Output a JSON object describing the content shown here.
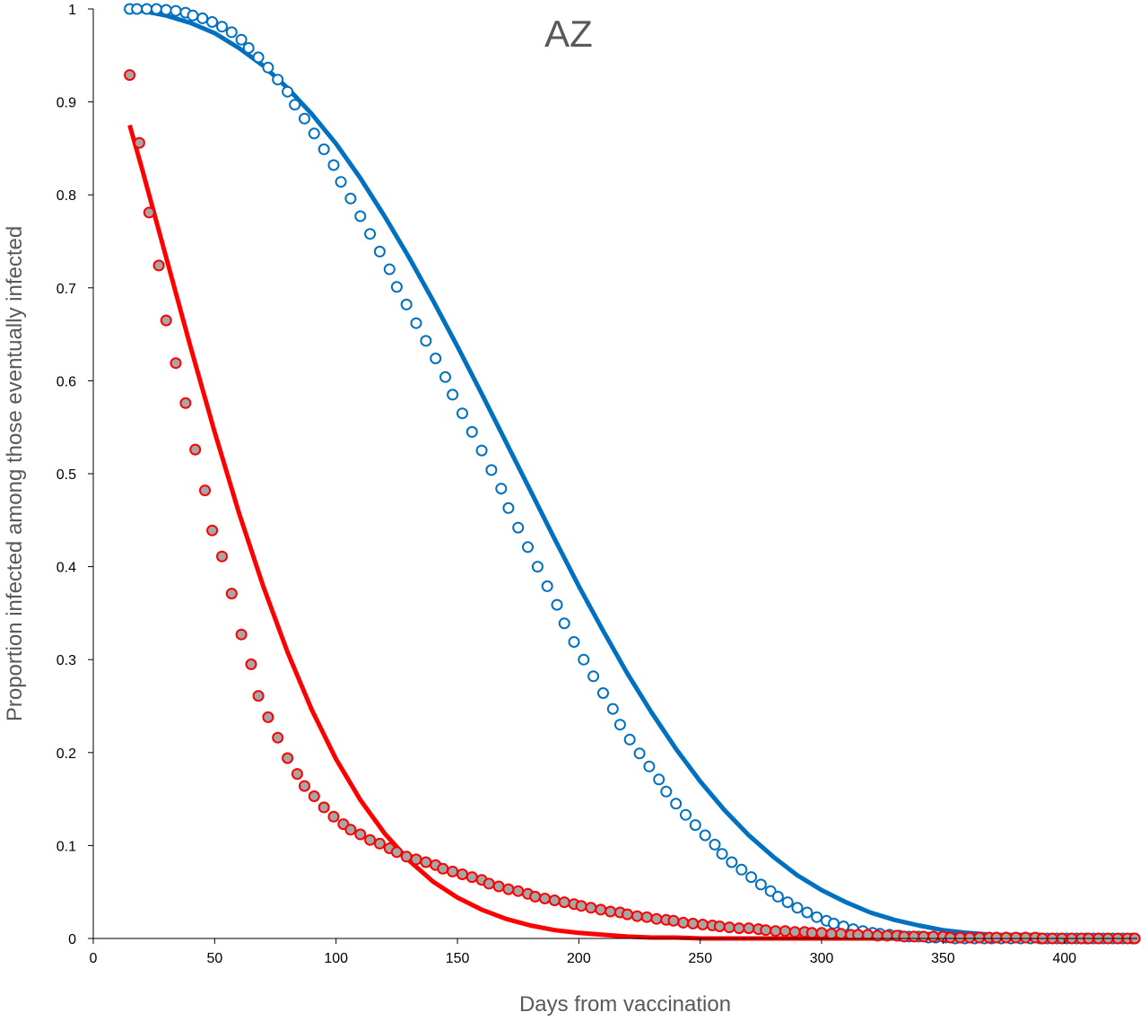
{
  "chart_data": {
    "type": "scatter",
    "title": "AZ",
    "xlabel": "Days from vaccination",
    "ylabel": "Proportion infected among those eventually infected",
    "xlim": [
      0,
      430
    ],
    "ylim": [
      0,
      1
    ],
    "x_ticks": [
      "0",
      "50",
      "100",
      "150",
      "200",
      "250",
      "300",
      "350",
      "400"
    ],
    "y_ticks": [
      "0",
      "0.1",
      "0.2",
      "0.3",
      "0.4",
      "0.5",
      "0.6",
      "0.7",
      "0.8",
      "0.9",
      "1"
    ],
    "grid": false,
    "legend": "none",
    "colors": {
      "blue": "#0070C0",
      "red": "#FF0000",
      "red_fill": "#A6A6A6",
      "axis": "#000000",
      "text": "#595959"
    },
    "series": [
      {
        "kind": "points-open",
        "color": "#0070C0",
        "x": [
          15,
          18,
          22,
          26,
          30,
          34,
          38,
          41,
          45,
          49,
          53,
          57,
          61,
          64,
          68,
          72,
          76,
          80,
          83,
          87,
          91,
          95,
          99,
          102,
          106,
          110,
          114,
          118,
          122,
          125,
          129,
          133,
          137,
          141,
          145,
          148,
          152,
          156,
          160,
          164,
          168,
          171,
          175,
          179,
          183,
          187,
          191,
          194,
          198,
          202,
          206,
          210,
          214,
          217,
          221,
          225,
          229,
          233,
          236,
          240,
          244,
          248,
          252,
          256,
          259,
          263,
          267,
          271,
          275,
          279,
          282,
          286,
          290,
          294,
          298,
          302,
          305,
          309,
          313,
          317,
          321,
          324,
          328,
          332,
          336,
          340,
          344,
          347,
          351,
          355,
          359,
          363,
          367,
          370,
          374,
          378,
          382,
          386,
          390,
          393,
          397,
          401,
          405,
          409,
          412,
          416,
          420,
          424,
          428
        ],
        "y": [
          1.0,
          1.0,
          1.0,
          1.0,
          0.999,
          0.998,
          0.996,
          0.993,
          0.99,
          0.986,
          0.981,
          0.975,
          0.967,
          0.958,
          0.948,
          0.937,
          0.924,
          0.911,
          0.897,
          0.882,
          0.866,
          0.849,
          0.832,
          0.814,
          0.796,
          0.777,
          0.758,
          0.739,
          0.72,
          0.701,
          0.682,
          0.662,
          0.643,
          0.624,
          0.604,
          0.585,
          0.565,
          0.545,
          0.525,
          0.504,
          0.484,
          0.463,
          0.442,
          0.421,
          0.4,
          0.379,
          0.359,
          0.339,
          0.319,
          0.3,
          0.282,
          0.264,
          0.247,
          0.23,
          0.214,
          0.199,
          0.185,
          0.171,
          0.158,
          0.145,
          0.133,
          0.122,
          0.111,
          0.101,
          0.091,
          0.082,
          0.074,
          0.066,
          0.058,
          0.051,
          0.045,
          0.039,
          0.033,
          0.028,
          0.023,
          0.019,
          0.016,
          0.013,
          0.01,
          0.008,
          0.006,
          0.005,
          0.004,
          0.003,
          0.002,
          0.002,
          0.001,
          0.001,
          0.001,
          0.0,
          0.0,
          0.0,
          0.0,
          0.0,
          0.0,
          0.0,
          0.0,
          0.0,
          0.0,
          0.0,
          0.0,
          0.0,
          0.0,
          0.0,
          0.0,
          0.0,
          0.0,
          0.0,
          0.0
        ]
      },
      {
        "kind": "line",
        "color": "#0070C0",
        "x": [
          15,
          20,
          30,
          40,
          50,
          60,
          70,
          80,
          90,
          100,
          110,
          120,
          130,
          140,
          150,
          160,
          170,
          180,
          190,
          200,
          210,
          220,
          230,
          240,
          250,
          260,
          270,
          280,
          290,
          300,
          310,
          320,
          330,
          340,
          350,
          360,
          370,
          380,
          390,
          400,
          410,
          420,
          430
        ],
        "y": [
          1.0,
          0.998,
          0.993,
          0.985,
          0.974,
          0.958,
          0.939,
          0.915,
          0.887,
          0.855,
          0.818,
          0.777,
          0.733,
          0.686,
          0.637,
          0.586,
          0.534,
          0.482,
          0.43,
          0.379,
          0.331,
          0.285,
          0.243,
          0.204,
          0.169,
          0.138,
          0.111,
          0.088,
          0.068,
          0.052,
          0.039,
          0.028,
          0.02,
          0.014,
          0.009,
          0.006,
          0.004,
          0.002,
          0.001,
          0.001,
          0.0,
          0.0,
          0.0
        ]
      },
      {
        "kind": "points-filled",
        "color": "#FF0000",
        "fill": "#A6A6A6",
        "x": [
          15,
          19,
          23,
          27,
          30,
          34,
          38,
          42,
          46,
          49,
          53,
          57,
          61,
          65,
          68,
          72,
          76,
          80,
          84,
          87,
          91,
          95,
          99,
          103,
          106,
          110,
          114,
          118,
          122,
          125,
          129,
          133,
          137,
          141,
          144,
          148,
          152,
          156,
          160,
          163,
          167,
          171,
          175,
          179,
          182,
          186,
          190,
          194,
          198,
          201,
          205,
          209,
          213,
          217,
          220,
          224,
          228,
          232,
          236,
          239,
          243,
          247,
          251,
          255,
          258,
          262,
          266,
          270,
          274,
          277,
          281,
          285,
          289,
          293,
          296,
          300,
          304,
          308,
          312,
          315,
          319,
          323,
          327,
          331,
          334,
          338,
          342,
          346,
          350,
          353,
          357,
          361,
          365,
          369,
          372,
          376,
          380,
          384,
          388,
          391,
          395,
          399,
          403,
          407,
          410,
          414,
          418,
          422,
          426,
          429
        ],
        "y": [
          0.929,
          0.856,
          0.781,
          0.724,
          0.665,
          0.619,
          0.576,
          0.526,
          0.482,
          0.439,
          0.411,
          0.371,
          0.327,
          0.295,
          0.261,
          0.238,
          0.216,
          0.194,
          0.177,
          0.164,
          0.153,
          0.141,
          0.131,
          0.123,
          0.117,
          0.112,
          0.106,
          0.102,
          0.097,
          0.093,
          0.088,
          0.085,
          0.082,
          0.079,
          0.075,
          0.072,
          0.069,
          0.066,
          0.063,
          0.059,
          0.056,
          0.053,
          0.051,
          0.048,
          0.045,
          0.043,
          0.041,
          0.039,
          0.037,
          0.035,
          0.033,
          0.031,
          0.029,
          0.028,
          0.026,
          0.024,
          0.023,
          0.021,
          0.02,
          0.019,
          0.017,
          0.016,
          0.015,
          0.014,
          0.013,
          0.012,
          0.011,
          0.011,
          0.01,
          0.009,
          0.008,
          0.008,
          0.007,
          0.007,
          0.006,
          0.006,
          0.005,
          0.005,
          0.004,
          0.004,
          0.004,
          0.003,
          0.003,
          0.003,
          0.002,
          0.002,
          0.002,
          0.002,
          0.002,
          0.001,
          0.001,
          0.001,
          0.001,
          0.001,
          0.001,
          0.001,
          0.001,
          0.001,
          0.001,
          0.0,
          0.0,
          0.0,
          0.0,
          0.0,
          0.0,
          0.0,
          0.0,
          0.0,
          0.0,
          0.0
        ]
      },
      {
        "kind": "line",
        "color": "#FF0000",
        "x": [
          15,
          20,
          30,
          40,
          50,
          60,
          70,
          80,
          90,
          100,
          110,
          120,
          130,
          140,
          150,
          160,
          170,
          180,
          190,
          200,
          210,
          220,
          230,
          240,
          250,
          260,
          270,
          280,
          290,
          300,
          310,
          320,
          330,
          340,
          350,
          360,
          370,
          380,
          390,
          400,
          410,
          420,
          430
        ],
        "y": [
          0.875,
          0.829,
          0.733,
          0.637,
          0.545,
          0.458,
          0.379,
          0.308,
          0.246,
          0.193,
          0.149,
          0.113,
          0.084,
          0.061,
          0.044,
          0.031,
          0.021,
          0.014,
          0.009,
          0.006,
          0.004,
          0.002,
          0.001,
          0.001,
          0.0,
          0.0,
          0.0,
          0.0,
          0.0,
          0.0,
          0.0,
          0.0,
          0.0,
          0.0,
          0.0,
          0.0,
          0.0,
          0.0,
          0.0,
          0.0,
          0.0,
          0.0,
          0.0
        ]
      }
    ]
  }
}
